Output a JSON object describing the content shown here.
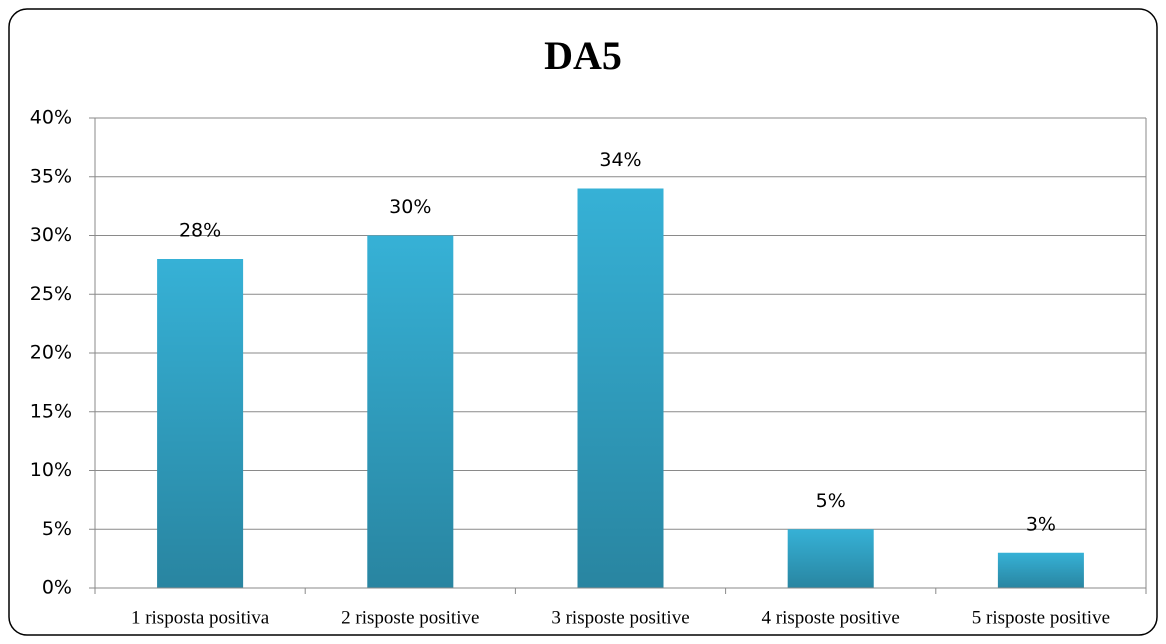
{
  "chart_data": {
    "type": "bar",
    "title": "DA5",
    "categories": [
      "1 risposta positiva",
      "2 risposte positive",
      "3 risposte positive",
      "4 risposte positive",
      "5 risposte positive"
    ],
    "values": [
      28,
      30,
      34,
      5,
      3
    ],
    "value_labels": [
      "28%",
      "30%",
      "34%",
      "5%",
      "3%"
    ],
    "color": "#36b1d6",
    "ylim": [
      0,
      40
    ],
    "yticks": [
      {
        "value": 0,
        "label": "0%"
      },
      {
        "value": 5,
        "label": "5%"
      },
      {
        "value": 10,
        "label": "10%"
      },
      {
        "value": 15,
        "label": "15%"
      },
      {
        "value": 20,
        "label": "20%"
      },
      {
        "value": 25,
        "label": "25%"
      },
      {
        "value": 30,
        "label": "30%"
      },
      {
        "value": 35,
        "label": "35%"
      },
      {
        "value": 40,
        "label": "40%"
      }
    ],
    "grid": true
  }
}
